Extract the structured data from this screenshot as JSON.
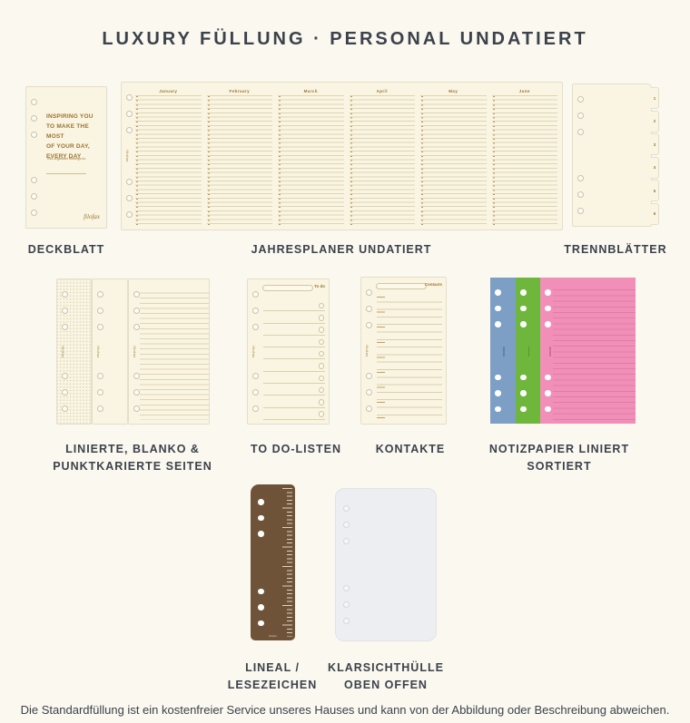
{
  "page": {
    "title": "LUXURY FÜLLUNG · PERSONAL UNDATIERT",
    "footer": "Die Standardfüllung ist ein kostenfreier Service unseres Hauses und kann von der Abbildung oder Beschreibung abweichen."
  },
  "colors": {
    "background": "#faf8ef",
    "sheet_cream": "#f9f5e2",
    "sheet_border": "#e4dfca",
    "accent_brown": "#9c7231",
    "text_dark": "#3b424b",
    "note_blue": "#7d9fc5",
    "note_green": "#6fb73c",
    "note_pink": "#f28fb9",
    "ruler_brown": "#6e5339",
    "pocket_gray": "#edeef1"
  },
  "products": {
    "deckblatt": {
      "label": "DECKBLATT",
      "headline": "INSPIRING YOU\nTO MAKE THE MOST\nOF YOUR DAY,\nEVERY DAY",
      "subline": "This organiser belongs to:",
      "brand": "filofax"
    },
    "jahresplaner": {
      "label": "JAHRESPLANER UNDATIERT",
      "months": [
        "January",
        "February",
        "March",
        "April",
        "May",
        "June"
      ],
      "brand": "filofax"
    },
    "trennblaetter": {
      "label": "TRENNBLÄTTER",
      "tabs": [
        "1",
        "2",
        "3",
        "4",
        "5",
        "6"
      ]
    },
    "seiten": {
      "label": "LINIERTE, BLANKO &\nPUNKTKARIERTE SEITEN",
      "brand": "filofax"
    },
    "todo": {
      "label": "TO DO-LISTEN",
      "corner": "To do",
      "brand": "filofax"
    },
    "kontakte": {
      "label": "KONTAKTE",
      "corner": "Contacts",
      "brand": "filofax"
    },
    "notizpapier": {
      "label": "NOTIZPAPIER LINIERT\nSORTIERT"
    },
    "lineal": {
      "label": "LINEAL /\nLESEZEICHEN",
      "brand": "filofax"
    },
    "huelle": {
      "label": "KLARSICHTHÜLLE\nOBEN OFFEN"
    }
  }
}
